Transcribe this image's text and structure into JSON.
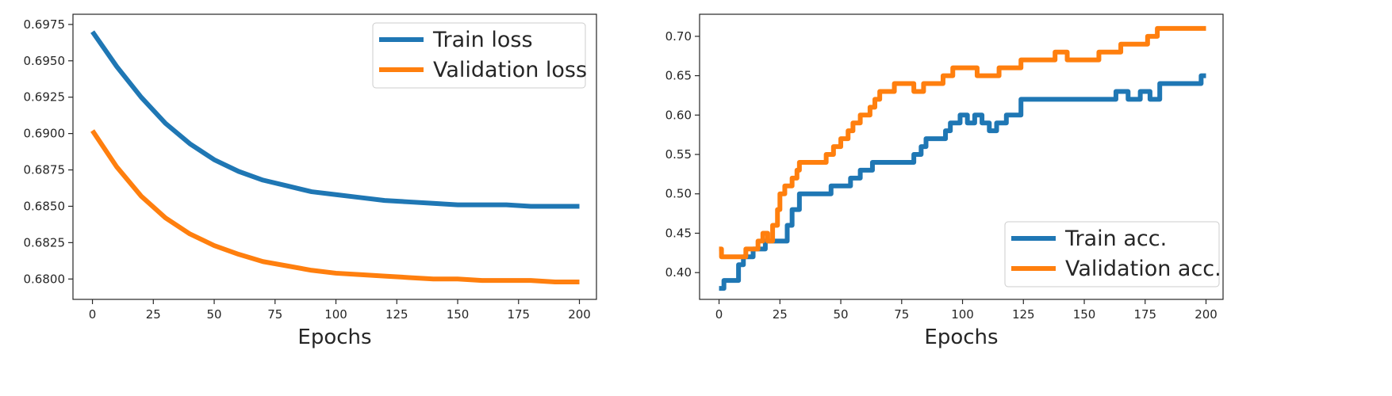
{
  "colors": {
    "train": "#1f77b4",
    "validation": "#ff7f0e"
  },
  "chart_data": [
    {
      "type": "line",
      "title": "",
      "xlabel": "Epochs",
      "ylabel": "",
      "xlim": [
        -8,
        207
      ],
      "ylim": [
        0.6786,
        0.6982
      ],
      "xticks": [
        0,
        25,
        50,
        75,
        100,
        125,
        150,
        175,
        200
      ],
      "xtick_labels": [
        "0",
        "25",
        "50",
        "75",
        "100",
        "125",
        "150",
        "175",
        "200"
      ],
      "yticks": [
        0.68,
        0.6825,
        0.685,
        0.6875,
        0.69,
        0.6925,
        0.695,
        0.6975
      ],
      "ytick_labels": [
        "0.6800",
        "0.6825",
        "0.6850",
        "0.6875",
        "0.6900",
        "0.6925",
        "0.6950",
        "0.6975"
      ],
      "legend_position": "top-right",
      "series": [
        {
          "name": "Train loss",
          "color": "#1f77b4",
          "x": [
            0,
            10,
            20,
            30,
            40,
            50,
            60,
            70,
            80,
            90,
            100,
            110,
            120,
            130,
            140,
            150,
            160,
            170,
            180,
            190,
            200
          ],
          "y": [
            0.697,
            0.6946,
            0.6925,
            0.6907,
            0.6893,
            0.6882,
            0.6874,
            0.6868,
            0.6864,
            0.686,
            0.6858,
            0.6856,
            0.6854,
            0.6853,
            0.6852,
            0.6851,
            0.6851,
            0.6851,
            0.685,
            0.685,
            0.685
          ]
        },
        {
          "name": "Validation loss",
          "color": "#ff7f0e",
          "x": [
            0,
            10,
            20,
            30,
            40,
            50,
            60,
            70,
            80,
            90,
            100,
            110,
            120,
            130,
            140,
            150,
            160,
            170,
            180,
            190,
            200
          ],
          "y": [
            0.6902,
            0.6877,
            0.6857,
            0.6842,
            0.6831,
            0.6823,
            0.6817,
            0.6812,
            0.6809,
            0.6806,
            0.6804,
            0.6803,
            0.6802,
            0.6801,
            0.68,
            0.68,
            0.6799,
            0.6799,
            0.6799,
            0.6798,
            0.6798
          ]
        }
      ]
    },
    {
      "type": "line",
      "title": "",
      "xlabel": "Epochs",
      "ylabel": "",
      "xlim": [
        -8,
        207
      ],
      "ylim": [
        0.366,
        0.728
      ],
      "xticks": [
        0,
        25,
        50,
        75,
        100,
        125,
        150,
        175,
        200
      ],
      "xtick_labels": [
        "0",
        "25",
        "50",
        "75",
        "100",
        "125",
        "150",
        "175",
        "200"
      ],
      "yticks": [
        0.4,
        0.45,
        0.5,
        0.55,
        0.6,
        0.65,
        0.7
      ],
      "ytick_labels": [
        "0.40",
        "0.45",
        "0.50",
        "0.55",
        "0.60",
        "0.65",
        "0.70"
      ],
      "legend_position": "bottom-right",
      "series": [
        {
          "name": "Train acc.",
          "color": "#1f77b4",
          "step": true,
          "x": [
            0,
            2,
            4,
            8,
            10,
            14,
            19,
            23,
            28,
            30,
            33,
            46,
            54,
            58,
            63,
            80,
            83,
            85,
            93,
            95,
            99,
            102,
            105,
            108,
            111,
            114,
            118,
            124,
            153,
            163,
            168,
            173,
            177,
            181,
            196,
            198
          ],
          "y": [
            0.38,
            0.39,
            0.39,
            0.41,
            0.42,
            0.43,
            0.44,
            0.44,
            0.46,
            0.48,
            0.5,
            0.51,
            0.52,
            0.53,
            0.54,
            0.55,
            0.56,
            0.57,
            0.58,
            0.59,
            0.6,
            0.59,
            0.6,
            0.59,
            0.58,
            0.59,
            0.6,
            0.62,
            0.62,
            0.63,
            0.62,
            0.63,
            0.62,
            0.64,
            0.64,
            0.65
          ]
        },
        {
          "name": "Validation acc.",
          "color": "#ff7f0e",
          "step": true,
          "x": [
            0,
            1,
            3,
            11,
            16,
            18,
            20,
            22,
            24,
            25,
            27,
            30,
            32,
            33,
            34,
            44,
            47,
            50,
            53,
            55,
            58,
            62,
            64,
            66,
            72,
            80,
            84,
            88,
            92,
            96,
            106,
            113,
            115,
            120,
            124,
            138,
            143,
            156,
            165,
            170,
            176,
            180
          ],
          "y": [
            0.43,
            0.42,
            0.42,
            0.43,
            0.44,
            0.45,
            0.44,
            0.46,
            0.48,
            0.5,
            0.51,
            0.52,
            0.53,
            0.54,
            0.54,
            0.55,
            0.56,
            0.57,
            0.58,
            0.59,
            0.6,
            0.61,
            0.62,
            0.63,
            0.64,
            0.63,
            0.64,
            0.64,
            0.65,
            0.66,
            0.65,
            0.65,
            0.66,
            0.66,
            0.67,
            0.68,
            0.67,
            0.68,
            0.69,
            0.69,
            0.7,
            0.71
          ]
        }
      ]
    }
  ]
}
